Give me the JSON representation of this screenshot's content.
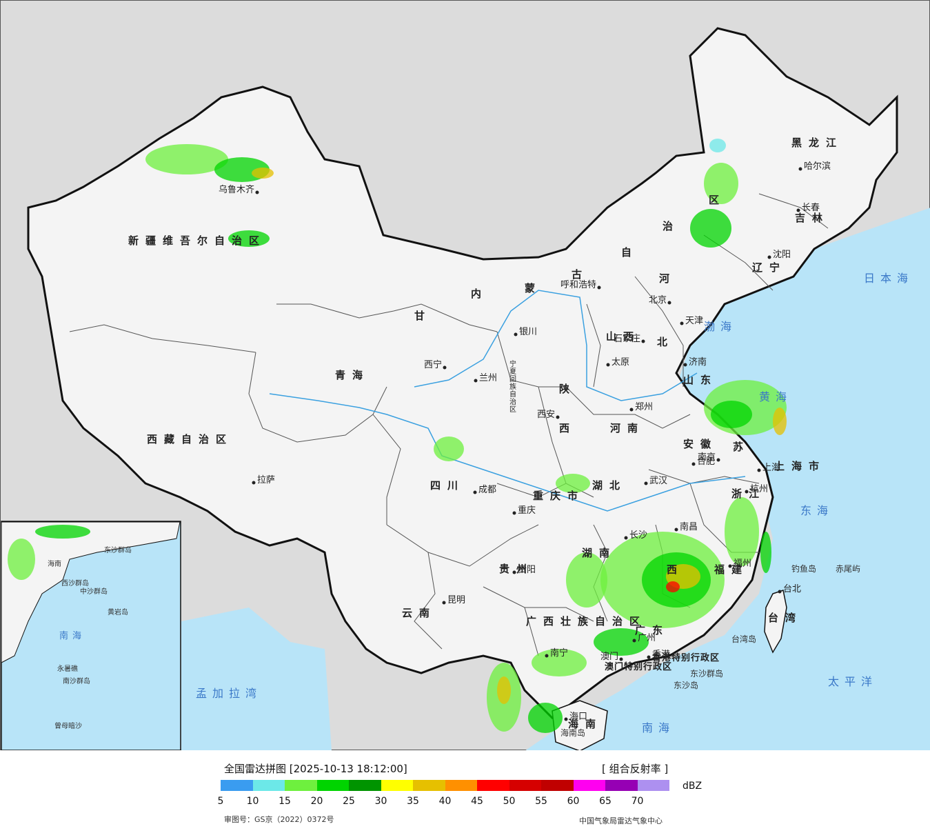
{
  "legend": {
    "title": "全国雷达拼图 [2025-10-13 18:12:00]",
    "product": "[ 组合反射率 ]",
    "unit": "dBZ",
    "colors": [
      "#3a9cf0",
      "#6ce8e8",
      "#6ef03e",
      "#00d400",
      "#009400",
      "#ffff00",
      "#e6c000",
      "#ff9000",
      "#ff0000",
      "#d60000",
      "#c00000",
      "#ff00f0",
      "#9600b4",
      "#ad90f0"
    ],
    "ticks": [
      "5",
      "10",
      "15",
      "20",
      "25",
      "30",
      "35",
      "40",
      "45",
      "50",
      "55",
      "60",
      "65",
      "70"
    ],
    "approval": "审图号：GS京（2022）0372号",
    "publisher": "中国气象局雷达气象中心"
  },
  "map": {
    "colors": {
      "land": "#f4f4f4",
      "outside": "#dcdcdc",
      "sea": "#b8e4f8",
      "border": "#111111",
      "river": "#3aa0e0"
    },
    "provinces": {
      "xinjiang": "新疆维吾尔自治区",
      "xizang": "西藏自治区",
      "qinghai": "青海",
      "gansu": "甘",
      "sichuan": "四川",
      "yunnan": "云南",
      "guizhou": "贵州",
      "guangxi": "广西壮族自治区",
      "guangdong": "广东",
      "hainan": "海南",
      "neimenggu_1": "内",
      "neimenggu_2": "蒙",
      "neimenggu_3": "古",
      "neimenggu_4": "自",
      "neimenggu_5": "治",
      "neimenggu_6": "区",
      "heilongjiang": "黑龙江",
      "jilin": "吉林",
      "liaoning": "辽宁",
      "hebei_1": "河",
      "hebei_2": "北",
      "shanxi": "山西",
      "shaanxi_1": "陕",
      "shaanxi_2": "西",
      "ningxia": "宁夏回族自治区",
      "henan": "河南",
      "shandong": "山东",
      "jiangsu": "苏",
      "anhui": "安徽",
      "hubei": "湖北",
      "hunan": "湖南",
      "jiangxi": "西",
      "zhejiang": "浙江",
      "fujian": "福建",
      "chongqing": "重庆市",
      "shanghai": "上海市",
      "taiwan": "台湾",
      "hongkong": "香港特别行政区",
      "macau": "澳门特别行政区"
    },
    "cities": [
      {
        "key": "urumqi",
        "name": "乌鲁木齐"
      },
      {
        "key": "lhasa",
        "name": "拉萨"
      },
      {
        "key": "xining",
        "name": "西宁"
      },
      {
        "key": "lanzhou",
        "name": "兰州"
      },
      {
        "key": "yinchuan",
        "name": "银川"
      },
      {
        "key": "huhehaote",
        "name": "呼和浩特"
      },
      {
        "key": "beijing",
        "name": "北京"
      },
      {
        "key": "tianjin",
        "name": "天津"
      },
      {
        "key": "shijiazhuang",
        "name": "石家庄"
      },
      {
        "key": "taiyuan",
        "name": "太原"
      },
      {
        "key": "jinan",
        "name": "济南"
      },
      {
        "key": "zhengzhou",
        "name": "郑州"
      },
      {
        "key": "xian",
        "name": "西安"
      },
      {
        "key": "chengdu",
        "name": "成都"
      },
      {
        "key": "chongqing",
        "name": "重庆"
      },
      {
        "key": "guiyang",
        "name": "贵阳"
      },
      {
        "key": "kunming",
        "name": "昆明"
      },
      {
        "key": "nanning",
        "name": "南宁"
      },
      {
        "key": "guangzhou",
        "name": "广州"
      },
      {
        "key": "haikou",
        "name": "海口"
      },
      {
        "key": "changsha",
        "name": "长沙"
      },
      {
        "key": "wuhan",
        "name": "武汉"
      },
      {
        "key": "nanchang",
        "name": "南昌"
      },
      {
        "key": "hefei",
        "name": "合肥"
      },
      {
        "key": "nanjing",
        "name": "南京"
      },
      {
        "key": "shanghai",
        "name": "上海"
      },
      {
        "key": "hangzhou",
        "name": "杭州"
      },
      {
        "key": "fuzhou",
        "name": "福州"
      },
      {
        "key": "taibei",
        "name": "台北"
      },
      {
        "key": "shenyang",
        "name": "沈阳"
      },
      {
        "key": "changchun",
        "name": "长春"
      },
      {
        "key": "haerbin",
        "name": "哈尔滨"
      },
      {
        "key": "xianggang",
        "name": "香港"
      },
      {
        "key": "aomen",
        "name": "澳门"
      }
    ],
    "seas": {
      "bohai": "渤海",
      "huanghai": "黄海",
      "donghai": "东海",
      "nanhai": "南海",
      "ribenhai": "日本海",
      "taipingyang": "太平洋",
      "mengjialawan": "孟加拉湾"
    },
    "islands": {
      "diaoyudao": "钓鱼岛",
      "chiweiyu": "赤尾屿",
      "taiwandao": "台湾岛",
      "dongshaqundao": "东沙群岛",
      "dongshadao": "东沙岛",
      "hainandao": "海南岛"
    },
    "inset": {
      "nanhai": "南海",
      "xisha": "西沙群岛",
      "zhongsha": "中沙群岛",
      "nansha": "南沙群岛",
      "dongsha": "东沙群岛",
      "huangyandao": "黄岩岛",
      "zengmuansha": "曾母暗沙",
      "yongshujiao": "永暑礁",
      "hainan": "海南"
    }
  }
}
